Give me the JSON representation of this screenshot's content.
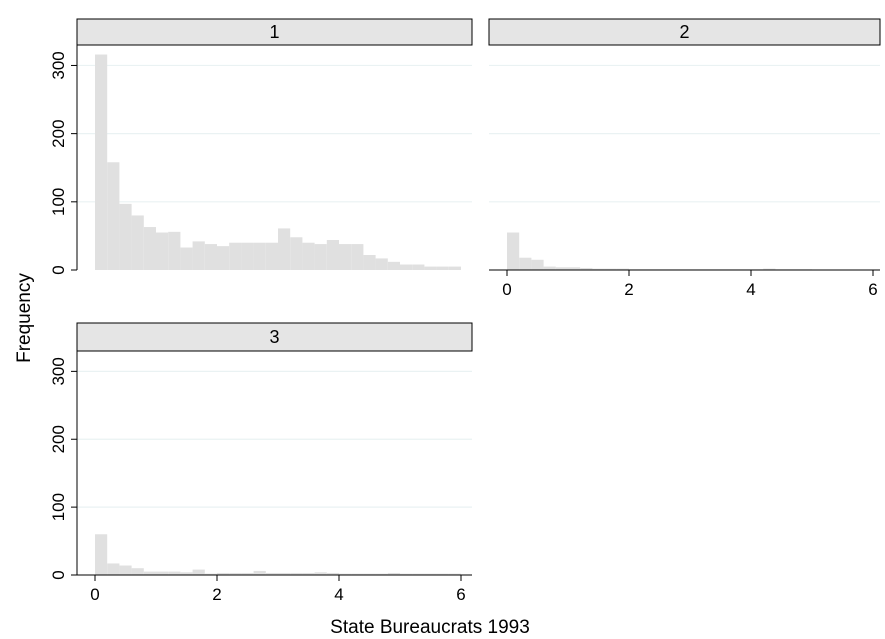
{
  "chart_data": {
    "type": "bar",
    "subtype": "histogram",
    "xlabel": "State Bureaucrats 1993",
    "ylabel": "Frequency",
    "xlim": [
      0,
      6
    ],
    "ylim": [
      0,
      330
    ],
    "x_ticks": [
      0,
      2,
      4,
      6
    ],
    "y_ticks": [
      0,
      100,
      200,
      300
    ],
    "bin_width": 0.2,
    "bin_starts": [
      0.0,
      0.2,
      0.4,
      0.6,
      0.8,
      1.0,
      1.2,
      1.4,
      1.6,
      1.8,
      2.0,
      2.2,
      2.4,
      2.6,
      2.8,
      3.0,
      3.2,
      3.4,
      3.6,
      3.8,
      4.0,
      4.2,
      4.4,
      4.6,
      4.8,
      5.0,
      5.2,
      5.4,
      5.6,
      5.8
    ],
    "grid": true,
    "colors": {
      "bar": "#e0e0e0",
      "strip_fill": "#e5e5e5",
      "strip_border": "#000000",
      "grid": "#eaf2f3",
      "axis": "#000000"
    },
    "panels": [
      {
        "label": "1",
        "values": [
          316,
          158,
          97,
          80,
          63,
          55,
          56,
          33,
          42,
          38,
          35,
          40,
          40,
          40,
          40,
          61,
          48,
          40,
          38,
          44,
          38,
          38,
          22,
          17,
          12,
          8,
          8,
          5,
          5,
          5
        ]
      },
      {
        "label": "2",
        "values": [
          55,
          18,
          15,
          5,
          4,
          4,
          3,
          2,
          2,
          2,
          1,
          1,
          1,
          1,
          1,
          1,
          1,
          1,
          1,
          1,
          1,
          2,
          1,
          1,
          1,
          0,
          0,
          0,
          0,
          0
        ]
      },
      {
        "label": "3",
        "values": [
          60,
          17,
          14,
          10,
          5,
          5,
          5,
          4,
          8,
          2,
          3,
          3,
          3,
          6,
          3,
          3,
          3,
          3,
          4,
          3,
          2,
          2,
          2,
          2,
          3,
          2,
          2,
          2,
          2,
          2
        ]
      }
    ]
  }
}
